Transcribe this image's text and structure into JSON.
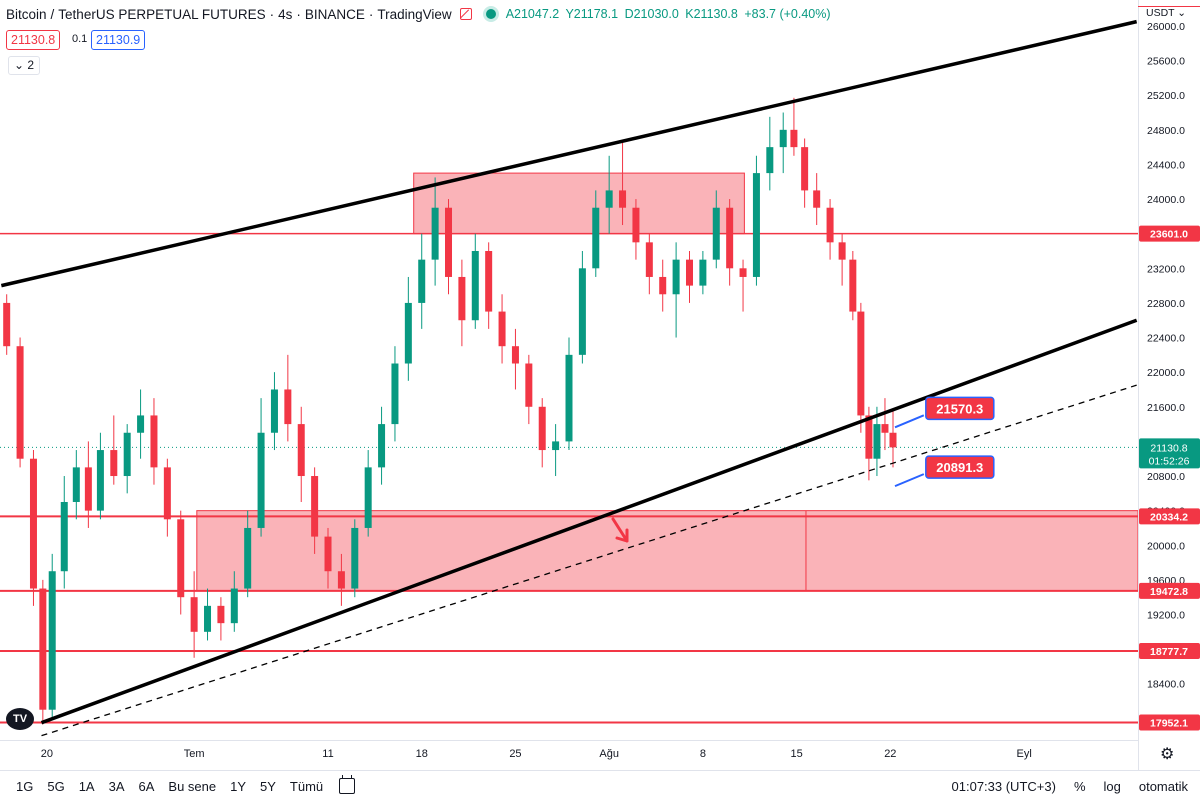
{
  "header": {
    "symbol": "Bitcoin",
    "quote": "TetherUS PERPETUAL FUTURES",
    "interval": "4s",
    "exchange": "BINANCE",
    "platform": "TradingView",
    "ohlc": {
      "open": "A21047.2",
      "high": "Y21178.1",
      "low": "D21030.0",
      "close": "K21130.8",
      "change": "+83.7 (+0.40%)"
    }
  },
  "trade": {
    "sell": "21130.8",
    "spread": "0.1",
    "buy": "21130.9"
  },
  "indicators_collapsed": "2",
  "currency": "USDT",
  "countdown": "01:52:26",
  "colors": {
    "up": "#089981",
    "down": "#f23645",
    "zone": "#f23645",
    "line": "#000000"
  },
  "bottom_bar": {
    "ranges": [
      "1G",
      "5G",
      "1A",
      "3A",
      "6A",
      "Bu sene",
      "1Y",
      "5Y",
      "Tümü"
    ],
    "time": "01:07:33 (UTC+3)",
    "percent": "%",
    "log": "log",
    "auto": "otomatik"
  },
  "chart_data": {
    "type": "candlestick",
    "ylim": [
      17750,
      26300
    ],
    "y_ticks": [
      18400,
      18800,
      19200,
      19600,
      20000,
      20400,
      20800,
      21200,
      21600,
      22000,
      22400,
      22800,
      23200,
      23600,
      24000,
      24400,
      24800,
      25200,
      25600,
      26000
    ],
    "x_ticks": [
      {
        "label": "20",
        "day": 20
      },
      {
        "label": "Tem",
        "day": 31
      },
      {
        "label": "11",
        "day": 41
      },
      {
        "label": "18",
        "day": 48
      },
      {
        "label": "25",
        "day": 55
      },
      {
        "label": "Ağu",
        "day": 62
      },
      {
        "label": "8",
        "day": 69
      },
      {
        "label": "15",
        "day": 76
      },
      {
        "label": "22",
        "day": 83
      },
      {
        "label": "Eyl",
        "day": 93
      }
    ],
    "x_range_days": [
      16.5,
      101.5
    ],
    "horizontal_levels": [
      {
        "label": "23601.0",
        "value": 23601.0
      },
      {
        "label": "20334.2",
        "value": 20334.2
      },
      {
        "label": "19472.8",
        "value": 19472.8
      },
      {
        "label": "18777.7",
        "value": 18777.7
      },
      {
        "label": "17952.1",
        "value": 17952.1
      }
    ],
    "zones": [
      {
        "day_from": 47.4,
        "day_to": 72.1,
        "low": 23601,
        "high": 24300
      },
      {
        "day_from": 31.2,
        "day_to": 101.5,
        "low": 19472.8,
        "high": 20400
      }
    ],
    "trendlines": [
      {
        "style": "solid",
        "from": [
          16.6,
          23000
        ],
        "to": [
          101.4,
          26050
        ]
      },
      {
        "style": "solid",
        "from": [
          19.6,
          17950
        ],
        "to": [
          101.4,
          22600
        ]
      },
      {
        "style": "dashed",
        "from": [
          19.6,
          17800
        ],
        "to": [
          101.4,
          21850
        ]
      }
    ],
    "callouts": [
      {
        "label": "21570.3",
        "value": 21570.3,
        "day": 85.8,
        "anchor_day": 83.2
      },
      {
        "label": "20891.3",
        "value": 20891.3,
        "day": 85.8,
        "anchor_day": 83.2
      }
    ],
    "last_price": {
      "label": "21130.8",
      "value": 21130.8
    },
    "candles": [
      {
        "d": 17.0,
        "o": 22800,
        "h": 22900,
        "l": 22200,
        "c": 22300
      },
      {
        "d": 18.0,
        "o": 22300,
        "h": 22400,
        "l": 20900,
        "c": 21000
      },
      {
        "d": 19.0,
        "o": 21000,
        "h": 21100,
        "l": 19300,
        "c": 19500
      },
      {
        "d": 19.7,
        "o": 19500,
        "h": 19600,
        "l": 17930,
        "c": 18100
      },
      {
        "d": 20.4,
        "o": 18100,
        "h": 19900,
        "l": 18000,
        "c": 19700
      },
      {
        "d": 21.3,
        "o": 19700,
        "h": 20800,
        "l": 19500,
        "c": 20500
      },
      {
        "d": 22.2,
        "o": 20500,
        "h": 21100,
        "l": 20300,
        "c": 20900
      },
      {
        "d": 23.1,
        "o": 20900,
        "h": 21200,
        "l": 20200,
        "c": 20400
      },
      {
        "d": 24.0,
        "o": 20400,
        "h": 21300,
        "l": 20300,
        "c": 21100
      },
      {
        "d": 25.0,
        "o": 21100,
        "h": 21500,
        "l": 20700,
        "c": 20800
      },
      {
        "d": 26.0,
        "o": 20800,
        "h": 21400,
        "l": 20600,
        "c": 21300
      },
      {
        "d": 27.0,
        "o": 21300,
        "h": 21800,
        "l": 21000,
        "c": 21500
      },
      {
        "d": 28.0,
        "o": 21500,
        "h": 21700,
        "l": 20700,
        "c": 20900
      },
      {
        "d": 29.0,
        "o": 20900,
        "h": 21000,
        "l": 20100,
        "c": 20300
      },
      {
        "d": 30.0,
        "o": 20300,
        "h": 20400,
        "l": 19200,
        "c": 19400
      },
      {
        "d": 31.0,
        "o": 19400,
        "h": 19700,
        "l": 18700,
        "c": 19000
      },
      {
        "d": 32.0,
        "o": 19000,
        "h": 19500,
        "l": 18900,
        "c": 19300
      },
      {
        "d": 33.0,
        "o": 19300,
        "h": 19400,
        "l": 18900,
        "c": 19100
      },
      {
        "d": 34.0,
        "o": 19100,
        "h": 19700,
        "l": 19000,
        "c": 19500
      },
      {
        "d": 35.0,
        "o": 19500,
        "h": 20400,
        "l": 19400,
        "c": 20200
      },
      {
        "d": 36.0,
        "o": 20200,
        "h": 21700,
        "l": 20100,
        "c": 21300
      },
      {
        "d": 37.0,
        "o": 21300,
        "h": 22000,
        "l": 21100,
        "c": 21800
      },
      {
        "d": 38.0,
        "o": 21800,
        "h": 22200,
        "l": 21200,
        "c": 21400
      },
      {
        "d": 39.0,
        "o": 21400,
        "h": 21600,
        "l": 20500,
        "c": 20800
      },
      {
        "d": 40.0,
        "o": 20800,
        "h": 20900,
        "l": 19900,
        "c": 20100
      },
      {
        "d": 41.0,
        "o": 20100,
        "h": 20200,
        "l": 19500,
        "c": 19700
      },
      {
        "d": 42.0,
        "o": 19700,
        "h": 19900,
        "l": 19300,
        "c": 19500
      },
      {
        "d": 43.0,
        "o": 19500,
        "h": 20300,
        "l": 19400,
        "c": 20200
      },
      {
        "d": 44.0,
        "o": 20200,
        "h": 21100,
        "l": 20100,
        "c": 20900
      },
      {
        "d": 45.0,
        "o": 20900,
        "h": 21600,
        "l": 20700,
        "c": 21400
      },
      {
        "d": 46.0,
        "o": 21400,
        "h": 22300,
        "l": 21200,
        "c": 22100
      },
      {
        "d": 47.0,
        "o": 22100,
        "h": 23100,
        "l": 21900,
        "c": 22800
      },
      {
        "d": 48.0,
        "o": 22800,
        "h": 23600,
        "l": 22500,
        "c": 23300
      },
      {
        "d": 49.0,
        "o": 23300,
        "h": 24250,
        "l": 23000,
        "c": 23900
      },
      {
        "d": 50.0,
        "o": 23900,
        "h": 24000,
        "l": 22900,
        "c": 23100
      },
      {
        "d": 51.0,
        "o": 23100,
        "h": 23300,
        "l": 22300,
        "c": 22600
      },
      {
        "d": 52.0,
        "o": 22600,
        "h": 23600,
        "l": 22500,
        "c": 23400
      },
      {
        "d": 53.0,
        "o": 23400,
        "h": 23500,
        "l": 22500,
        "c": 22700
      },
      {
        "d": 54.0,
        "o": 22700,
        "h": 22900,
        "l": 22100,
        "c": 22300
      },
      {
        "d": 55.0,
        "o": 22300,
        "h": 22500,
        "l": 21800,
        "c": 22100
      },
      {
        "d": 56.0,
        "o": 22100,
        "h": 22200,
        "l": 21400,
        "c": 21600
      },
      {
        "d": 57.0,
        "o": 21600,
        "h": 21700,
        "l": 20900,
        "c": 21100
      },
      {
        "d": 58.0,
        "o": 21100,
        "h": 21400,
        "l": 20800,
        "c": 21200
      },
      {
        "d": 59.0,
        "o": 21200,
        "h": 22400,
        "l": 21100,
        "c": 22200
      },
      {
        "d": 60.0,
        "o": 22200,
        "h": 23400,
        "l": 22100,
        "c": 23200
      },
      {
        "d": 61.0,
        "o": 23200,
        "h": 24100,
        "l": 23100,
        "c": 23900
      },
      {
        "d": 62.0,
        "o": 23900,
        "h": 24500,
        "l": 23600,
        "c": 24100
      },
      {
        "d": 63.0,
        "o": 24100,
        "h": 24650,
        "l": 23700,
        "c": 23900
      },
      {
        "d": 64.0,
        "o": 23900,
        "h": 24000,
        "l": 23300,
        "c": 23500
      },
      {
        "d": 65.0,
        "o": 23500,
        "h": 23600,
        "l": 22900,
        "c": 23100
      },
      {
        "d": 66.0,
        "o": 23100,
        "h": 23300,
        "l": 22700,
        "c": 22900
      },
      {
        "d": 67.0,
        "o": 22900,
        "h": 23500,
        "l": 22400,
        "c": 23300
      },
      {
        "d": 68.0,
        "o": 23300,
        "h": 23400,
        "l": 22800,
        "c": 23000
      },
      {
        "d": 69.0,
        "o": 23000,
        "h": 23400,
        "l": 22900,
        "c": 23300
      },
      {
        "d": 70.0,
        "o": 23300,
        "h": 24100,
        "l": 23200,
        "c": 23900
      },
      {
        "d": 71.0,
        "o": 23900,
        "h": 24000,
        "l": 23000,
        "c": 23200
      },
      {
        "d": 72.0,
        "o": 23200,
        "h": 23300,
        "l": 22700,
        "c": 23100
      },
      {
        "d": 73.0,
        "o": 23100,
        "h": 24500,
        "l": 23000,
        "c": 24300
      },
      {
        "d": 74.0,
        "o": 24300,
        "h": 24950,
        "l": 24100,
        "c": 24600
      },
      {
        "d": 75.0,
        "o": 24600,
        "h": 25000,
        "l": 24300,
        "c": 24800
      },
      {
        "d": 75.8,
        "o": 24800,
        "h": 25170,
        "l": 24500,
        "c": 24600
      },
      {
        "d": 76.6,
        "o": 24600,
        "h": 24700,
        "l": 23900,
        "c": 24100
      },
      {
        "d": 77.5,
        "o": 24100,
        "h": 24300,
        "l": 23700,
        "c": 23900
      },
      {
        "d": 78.5,
        "o": 23900,
        "h": 24000,
        "l": 23300,
        "c": 23500
      },
      {
        "d": 79.4,
        "o": 23500,
        "h": 23600,
        "l": 23000,
        "c": 23300
      },
      {
        "d": 80.2,
        "o": 23300,
        "h": 23400,
        "l": 22600,
        "c": 22700
      },
      {
        "d": 80.8,
        "o": 22700,
        "h": 22800,
        "l": 21300,
        "c": 21500
      },
      {
        "d": 81.4,
        "o": 21500,
        "h": 21600,
        "l": 20750,
        "c": 21000
      },
      {
        "d": 82.0,
        "o": 21000,
        "h": 21600,
        "l": 20800,
        "c": 21400
      },
      {
        "d": 82.6,
        "o": 21400,
        "h": 21700,
        "l": 21100,
        "c": 21300
      },
      {
        "d": 83.2,
        "o": 21300,
        "h": 21570,
        "l": 20900,
        "c": 21130.8
      }
    ]
  }
}
